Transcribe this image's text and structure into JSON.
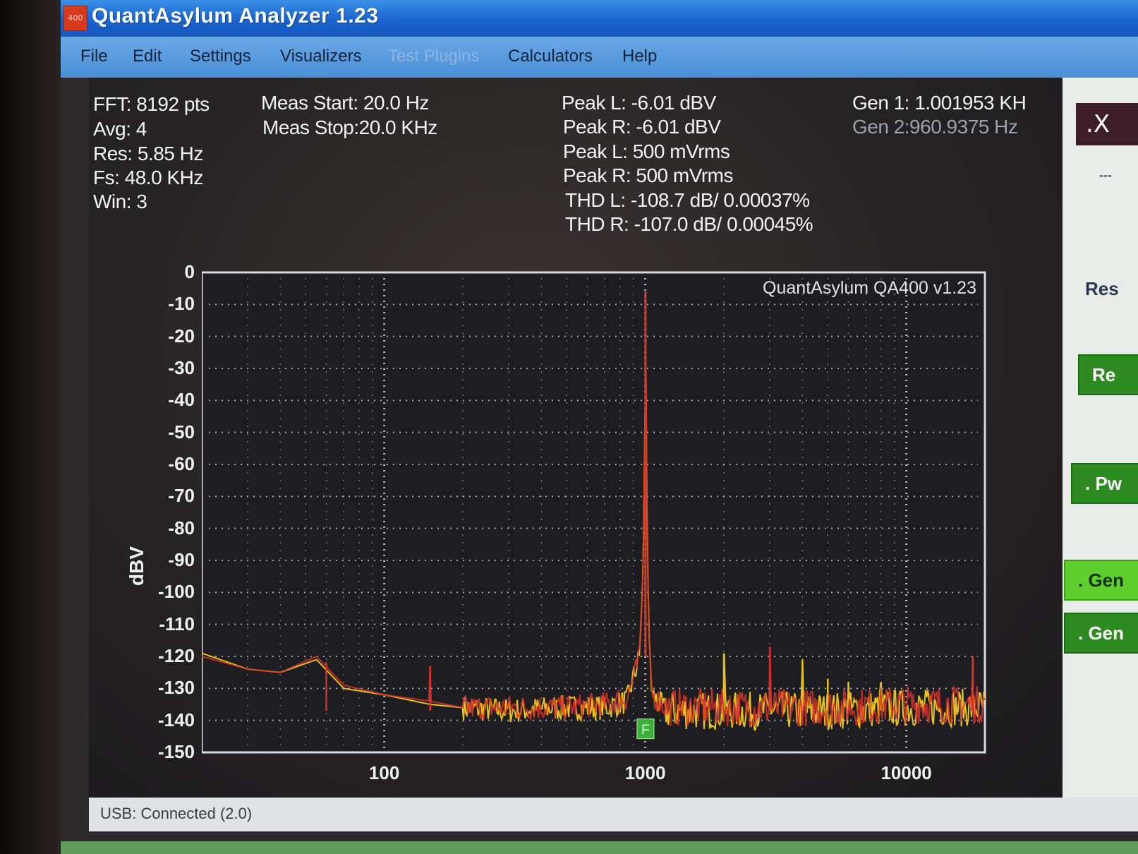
{
  "window": {
    "title": "QuantAsylum Analyzer 1.23",
    "icon_label": "400"
  },
  "menu": [
    "File",
    "Edit",
    "Settings",
    "Visualizers",
    "Test Plugins",
    "Calculators",
    "Help"
  ],
  "menu_disabled": [
    "Test Plugins"
  ],
  "stats": {
    "fft": "FFT: 8192 pts",
    "avg": "Avg: 4",
    "res": "Res: 5.85 Hz",
    "fs": "Fs: 48.0 KHz",
    "win": "Win: 3",
    "meas_start": "Meas Start: 20.0 Hz",
    "meas_stop": "Meas Stop:20.0 KHz",
    "peak_l_dbv": "Peak L: -6.01 dBV",
    "peak_r_dbv": "Peak R: -6.01 dBV",
    "peak_l_vrms": "Peak L: 500 mVrms",
    "peak_r_vrms": "Peak R: 500 mVrms",
    "thd_l": "THD L: -108.7 dB/ 0.00037%",
    "thd_r": "THD R: -107.0 dB/ 0.00045%",
    "gen1": "Gen 1: 1.001953 KH",
    "gen2": "Gen 2:960.9375 Hz"
  },
  "chart_data": {
    "type": "line",
    "title": "QuantAsylum QA400 v1.23",
    "xlabel": "",
    "ylabel": "dBV",
    "x_scale": "log",
    "xlim": [
      20,
      20000
    ],
    "ylim": [
      -150,
      0
    ],
    "x_ticks": [
      "100",
      "1000",
      "10000"
    ],
    "y_ticks": [
      "0",
      "-10",
      "-20",
      "-30",
      "-40",
      "-50",
      "-60",
      "-70",
      "-80",
      "-90",
      "-100",
      "-110",
      "-120",
      "-130",
      "-140",
      "-150"
    ],
    "grid": true,
    "fundamental_marker": "F",
    "series": [
      {
        "color": "#e8c21a",
        "points": [
          [
            20,
            -119
          ],
          [
            30,
            -124
          ],
          [
            40,
            -125
          ],
          [
            55,
            -121
          ],
          [
            70,
            -130
          ],
          [
            100,
            -132
          ],
          [
            150,
            -135
          ],
          [
            200,
            -136
          ],
          [
            300,
            -137
          ],
          [
            500,
            -136
          ],
          [
            700,
            -136
          ],
          [
            850,
            -134
          ],
          [
            950,
            -120
          ],
          [
            980,
            -95
          ],
          [
            995,
            -55
          ],
          [
            1002,
            -6
          ],
          [
            1010,
            -60
          ],
          [
            1030,
            -110
          ],
          [
            1060,
            -132
          ],
          [
            1200,
            -137
          ],
          [
            2000,
            -137
          ],
          [
            5000,
            -137
          ],
          [
            10000,
            -136
          ],
          [
            20000,
            -136
          ]
        ],
        "spurs": [
          [
            2000,
            -119
          ],
          [
            3000,
            -128
          ],
          [
            4000,
            -121
          ],
          [
            5000,
            -127
          ],
          [
            6000,
            -128
          ],
          [
            8000,
            -128
          ]
        ]
      },
      {
        "color": "#d6332a",
        "points": [
          [
            20,
            -120
          ],
          [
            30,
            -124
          ],
          [
            40,
            -125
          ],
          [
            55,
            -120
          ],
          [
            70,
            -129
          ],
          [
            100,
            -132
          ],
          [
            150,
            -134
          ],
          [
            200,
            -136
          ],
          [
            300,
            -136
          ],
          [
            500,
            -136
          ],
          [
            700,
            -135
          ],
          [
            850,
            -133
          ],
          [
            950,
            -121
          ],
          [
            980,
            -96
          ],
          [
            995,
            -56
          ],
          [
            1002,
            -6
          ],
          [
            1010,
            -61
          ],
          [
            1030,
            -111
          ],
          [
            1060,
            -132
          ],
          [
            1200,
            -136
          ],
          [
            2000,
            -136
          ],
          [
            5000,
            -136
          ],
          [
            10000,
            -135
          ],
          [
            20000,
            -135
          ]
        ],
        "spurs": [
          [
            60,
            -122
          ],
          [
            150,
            -123
          ],
          [
            3000,
            -117
          ],
          [
            18000,
            -120
          ]
        ]
      }
    ]
  },
  "side": {
    "text_res": "Res",
    "text_dashes": "---",
    "btn_re": "Re",
    "btn_pw": ". Pw",
    "btn_gen1": ". Gen",
    "btn_gen2": ". Gen",
    "close": ".X"
  },
  "status": "USB: Connected  (2.0)"
}
